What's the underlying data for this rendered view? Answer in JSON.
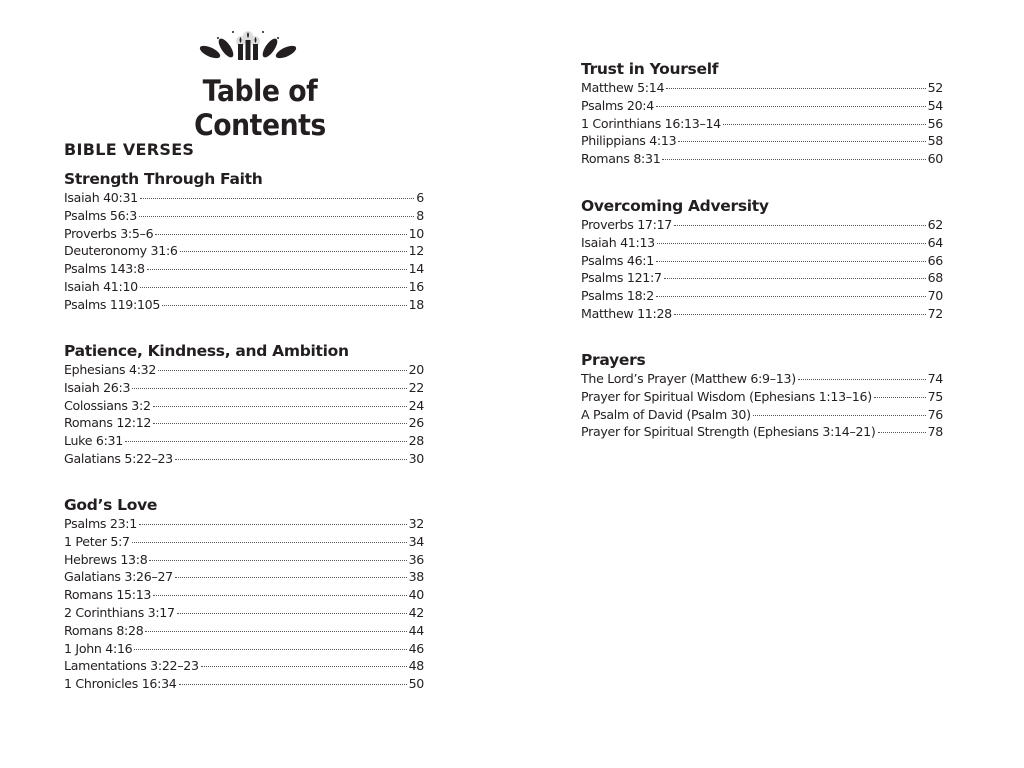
{
  "header": {
    "title": "Table of Contents",
    "logo_icon": "candles-and-leaves-icon"
  },
  "part_label": "BIBLE VERSES",
  "sections": [
    {
      "title": "Strength Through Faith",
      "column": "left",
      "entries": [
        {
          "name": "Isaiah 40:31",
          "page": "6"
        },
        {
          "name": "Psalms 56:3",
          "page": "8"
        },
        {
          "name": "Proverbs 3:5–6",
          "page": "10"
        },
        {
          "name": "Deuteronomy 31:6",
          "page": "12"
        },
        {
          "name": "Psalms 143:8",
          "page": "14"
        },
        {
          "name": "Isaiah 41:10",
          "page": "16"
        },
        {
          "name": "Psalms 119:105",
          "page": "18"
        }
      ]
    },
    {
      "title": "Patience, Kindness, and Ambition",
      "column": "left",
      "entries": [
        {
          "name": "Ephesians 4:32",
          "page": "20"
        },
        {
          "name": "Isaiah 26:3",
          "page": "22"
        },
        {
          "name": "Colossians 3:2",
          "page": "24"
        },
        {
          "name": "Romans 12:12",
          "page": "26"
        },
        {
          "name": "Luke 6:31",
          "page": "28"
        },
        {
          "name": "Galatians 5:22–23",
          "page": "30"
        }
      ]
    },
    {
      "title": "God’s Love",
      "column": "left",
      "entries": [
        {
          "name": "Psalms 23:1",
          "page": "32"
        },
        {
          "name": "1 Peter 5:7",
          "page": "34"
        },
        {
          "name": "Hebrews 13:8",
          "page": "36"
        },
        {
          "name": "Galatians 3:26–27",
          "page": "38"
        },
        {
          "name": "Romans 15:13",
          "page": "40"
        },
        {
          "name": "2 Corinthians 3:17",
          "page": "42"
        },
        {
          "name": "Romans 8:28",
          "page": "44"
        },
        {
          "name": "1 John 4:16",
          "page": "46"
        },
        {
          "name": "Lamentations 3:22–23",
          "page": "48"
        },
        {
          "name": "1 Chronicles 16:34",
          "page": "50"
        }
      ]
    },
    {
      "title": "Trust in Yourself",
      "column": "right",
      "entries": [
        {
          "name": "Matthew 5:14",
          "page": "52"
        },
        {
          "name": "Psalms 20:4",
          "page": "54"
        },
        {
          "name": "1 Corinthians 16:13–14",
          "page": "56"
        },
        {
          "name": "Philippians 4:13",
          "page": "58"
        },
        {
          "name": "Romans 8:31",
          "page": "60"
        }
      ]
    },
    {
      "title": "Overcoming Adversity",
      "column": "right",
      "entries": [
        {
          "name": "Proverbs 17:17",
          "page": "62"
        },
        {
          "name": "Isaiah 41:13",
          "page": "64"
        },
        {
          "name": "Psalms 46:1",
          "page": "66"
        },
        {
          "name": "Psalms 121:7",
          "page": "68"
        },
        {
          "name": "Psalms 18:2",
          "page": "70"
        },
        {
          "name": "Matthew 11:28",
          "page": "72"
        }
      ]
    },
    {
      "title": "Prayers",
      "column": "right",
      "entries": [
        {
          "name": "The Lord’s Prayer (Matthew 6:9–13)",
          "page": "74"
        },
        {
          "name": "Prayer for Spiritual Wisdom (Ephesians 1:13–16)",
          "page": "75"
        },
        {
          "name": "A Psalm of David (Psalm 30)",
          "page": "76"
        },
        {
          "name": "Prayer for Spiritual Strength (Ephesians 3:14–21)",
          "page": "78"
        }
      ]
    }
  ]
}
